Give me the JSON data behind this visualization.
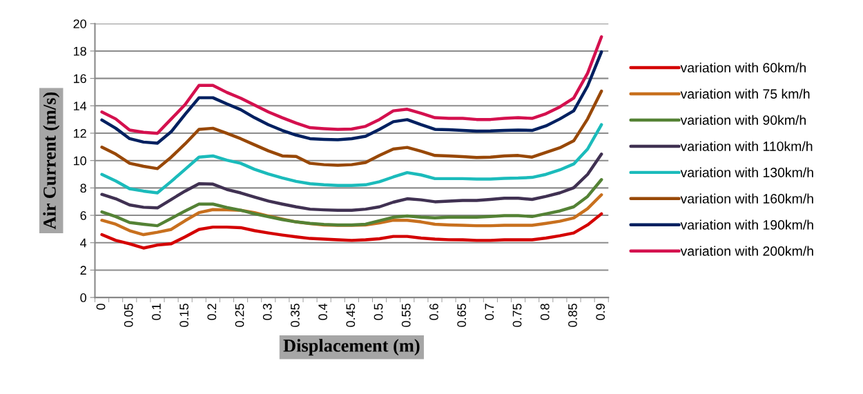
{
  "chart_data": {
    "type": "line",
    "xlabel": "Displacement (m)",
    "ylabel": "Air Current (m/s)",
    "categories": [
      "0",
      null,
      "0.05",
      null,
      "0.1",
      null,
      "0.15",
      null,
      "0.2",
      null,
      "0.25",
      null,
      "0.3",
      null,
      "0.35",
      null,
      "0.4",
      null,
      "0.45",
      null,
      "0.5",
      null,
      "0.55",
      null,
      "0.6",
      null,
      "0.65",
      null,
      "0.7",
      null,
      "0.75",
      null,
      "0.8",
      null,
      "0.85",
      null,
      "0.9"
    ],
    "ylim": [
      0,
      20
    ],
    "yticks": [
      0,
      2,
      4,
      6,
      8,
      10,
      12,
      14,
      16,
      18,
      20
    ],
    "grid": "y",
    "legend": "right",
    "marker": "none",
    "line_style": "solid",
    "series": [
      {
        "name": "variation with 60km/h",
        "color": "#d40000",
        "values": [
          4.59,
          4.17,
          3.92,
          3.61,
          3.83,
          3.92,
          4.43,
          4.97,
          5.14,
          5.14,
          5.1,
          4.88,
          4.71,
          4.56,
          4.43,
          4.31,
          4.26,
          4.21,
          4.17,
          4.21,
          4.29,
          4.46,
          4.46,
          4.34,
          4.26,
          4.22,
          4.21,
          4.17,
          4.17,
          4.21,
          4.21,
          4.21,
          4.34,
          4.51,
          4.71,
          5.3,
          6.11
        ]
      },
      {
        "name": "variation with 75 km/h",
        "color": "#c8701e",
        "values": [
          5.64,
          5.35,
          4.88,
          4.59,
          4.76,
          4.97,
          5.61,
          6.2,
          6.42,
          6.4,
          6.37,
          6.2,
          5.95,
          5.73,
          5.52,
          5.39,
          5.3,
          5.27,
          5.27,
          5.3,
          5.44,
          5.64,
          5.64,
          5.52,
          5.35,
          5.3,
          5.27,
          5.24,
          5.24,
          5.27,
          5.27,
          5.27,
          5.41,
          5.57,
          5.81,
          6.49,
          7.5
        ]
      },
      {
        "name": "variation with 90km/h",
        "color": "#548235",
        "values": [
          6.25,
          5.91,
          5.47,
          5.35,
          5.24,
          5.78,
          6.32,
          6.82,
          6.82,
          6.57,
          6.37,
          6.11,
          5.9,
          5.69,
          5.52,
          5.41,
          5.34,
          5.3,
          5.3,
          5.35,
          5.61,
          5.86,
          5.95,
          5.86,
          5.81,
          5.86,
          5.86,
          5.86,
          5.91,
          5.98,
          5.98,
          5.91,
          6.11,
          6.32,
          6.62,
          7.38,
          8.61
        ]
      },
      {
        "name": "variation with 110km/h",
        "color": "#403152",
        "values": [
          7.53,
          7.21,
          6.76,
          6.59,
          6.54,
          7.16,
          7.77,
          8.31,
          8.28,
          7.89,
          7.64,
          7.33,
          7.04,
          6.82,
          6.62,
          6.45,
          6.4,
          6.37,
          6.37,
          6.45,
          6.62,
          6.96,
          7.21,
          7.13,
          6.99,
          7.04,
          7.09,
          7.09,
          7.16,
          7.25,
          7.25,
          7.16,
          7.38,
          7.64,
          8.01,
          8.99,
          10.47
        ]
      },
      {
        "name": "variation with 130km/h",
        "color": "#1bbbbb",
        "values": [
          8.99,
          8.51,
          7.94,
          7.77,
          7.64,
          8.48,
          9.36,
          10.25,
          10.34,
          10.03,
          9.8,
          9.36,
          9.02,
          8.73,
          8.48,
          8.31,
          8.23,
          8.18,
          8.18,
          8.23,
          8.45,
          8.8,
          9.12,
          8.95,
          8.68,
          8.68,
          8.68,
          8.65,
          8.65,
          8.7,
          8.72,
          8.77,
          8.99,
          9.32,
          9.75,
          10.84,
          12.62
        ]
      },
      {
        "name": "variation with 160km/h",
        "color": "#984807",
        "values": [
          10.98,
          10.47,
          9.8,
          9.58,
          9.41,
          10.25,
          11.22,
          12.28,
          12.36,
          11.99,
          11.6,
          11.15,
          10.71,
          10.34,
          10.3,
          9.8,
          9.7,
          9.66,
          9.7,
          9.86,
          10.37,
          10.84,
          10.96,
          10.68,
          10.37,
          10.34,
          10.29,
          10.22,
          10.25,
          10.34,
          10.37,
          10.25,
          10.59,
          10.93,
          11.44,
          13.04,
          15.07
        ]
      },
      {
        "name": "variation with 190km/h",
        "color": "#002060",
        "values": [
          12.96,
          12.36,
          11.6,
          11.35,
          11.27,
          12.11,
          13.38,
          14.59,
          14.59,
          14.14,
          13.72,
          13.13,
          12.62,
          12.2,
          11.86,
          11.6,
          11.55,
          11.52,
          11.6,
          11.77,
          12.28,
          12.84,
          12.99,
          12.62,
          12.28,
          12.25,
          12.2,
          12.15,
          12.16,
          12.2,
          12.23,
          12.2,
          12.53,
          13.04,
          13.63,
          15.44,
          17.94
        ]
      },
      {
        "name": "variation with 200km/h",
        "color": "#d4104e",
        "values": [
          13.55,
          13.04,
          12.23,
          12.06,
          11.99,
          13.04,
          14.09,
          15.49,
          15.49,
          14.98,
          14.56,
          14.05,
          13.55,
          13.13,
          12.74,
          12.4,
          12.33,
          12.28,
          12.3,
          12.5,
          13.0,
          13.63,
          13.75,
          13.46,
          13.13,
          13.08,
          13.08,
          13.0,
          13.0,
          13.08,
          13.13,
          13.08,
          13.42,
          13.92,
          14.56,
          16.38,
          19.04
        ]
      }
    ]
  }
}
